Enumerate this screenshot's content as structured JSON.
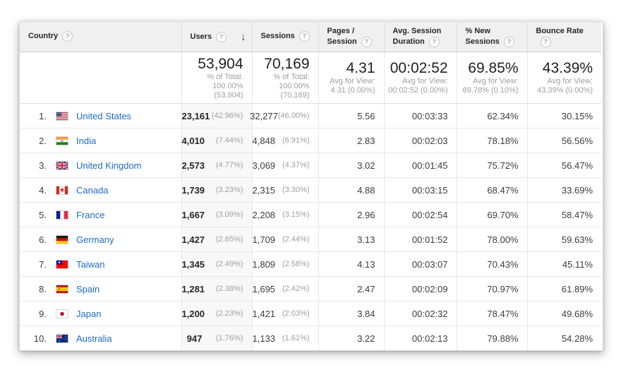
{
  "icons": {
    "sort_descending": "↓",
    "help_glyph": "?"
  },
  "colors": {
    "link_blue": "#1e6bc6",
    "header_bg": "#f0f0f0",
    "sorted_column_bg": "#f8f8f8",
    "muted_text": "#9e9e9e"
  },
  "table": {
    "columns": [
      {
        "label": "Country"
      },
      {
        "label": "Users",
        "sorted": "descending"
      },
      {
        "label": "Sessions"
      },
      {
        "label": "Pages / Session"
      },
      {
        "label": "Avg. Session Duration"
      },
      {
        "label": "% New Sessions"
      },
      {
        "label": "Bounce Rate"
      }
    ],
    "summary": {
      "users": {
        "value": "53,904",
        "caption": "% of Total:",
        "detail": "100.00% (53,904)"
      },
      "sessions": {
        "value": "70,169",
        "caption": "% of Total:",
        "detail": "100.00% (70,169)"
      },
      "pages_per_session": {
        "value": "4.31",
        "caption": "Avg for View:",
        "detail": "4.31 (0.00%)"
      },
      "avg_session_duration": {
        "value": "00:02:52",
        "caption": "Avg for View:",
        "detail": "00:02:52 (0.00%)"
      },
      "percent_new_sessions": {
        "value": "69.85%",
        "caption": "Avg for View:",
        "detail": "69.78% (0.10%)"
      },
      "bounce_rate": {
        "value": "43.39%",
        "caption": "Avg for View:",
        "detail": "43.39% (0.00%)"
      }
    },
    "rows": [
      {
        "rank": "1.",
        "flag": "us",
        "country": "United States",
        "users": "23,161",
        "users_pct": "(42.96%)",
        "sessions": "32,277",
        "sessions_pct": "(46.00%)",
        "pages_per_session": "5.56",
        "avg_session_duration": "00:03:33",
        "percent_new_sessions": "62.34%",
        "bounce_rate": "30.15%"
      },
      {
        "rank": "2.",
        "flag": "in",
        "country": "India",
        "users": "4,010",
        "users_pct": "(7.44%)",
        "sessions": "4,848",
        "sessions_pct": "(6.91%)",
        "pages_per_session": "2.83",
        "avg_session_duration": "00:02:03",
        "percent_new_sessions": "78.18%",
        "bounce_rate": "56.56%"
      },
      {
        "rank": "3.",
        "flag": "gb",
        "country": "United Kingdom",
        "users": "2,573",
        "users_pct": "(4.77%)",
        "sessions": "3,069",
        "sessions_pct": "(4.37%)",
        "pages_per_session": "3.02",
        "avg_session_duration": "00:01:45",
        "percent_new_sessions": "75.72%",
        "bounce_rate": "56.47%"
      },
      {
        "rank": "4.",
        "flag": "ca",
        "country": "Canada",
        "users": "1,739",
        "users_pct": "(3.23%)",
        "sessions": "2,315",
        "sessions_pct": "(3.30%)",
        "pages_per_session": "4.88",
        "avg_session_duration": "00:03:15",
        "percent_new_sessions": "68.47%",
        "bounce_rate": "33.69%"
      },
      {
        "rank": "5.",
        "flag": "fr",
        "country": "France",
        "users": "1,667",
        "users_pct": "(3.09%)",
        "sessions": "2,208",
        "sessions_pct": "(3.15%)",
        "pages_per_session": "2.96",
        "avg_session_duration": "00:02:54",
        "percent_new_sessions": "69.70%",
        "bounce_rate": "58.47%"
      },
      {
        "rank": "6.",
        "flag": "de",
        "country": "Germany",
        "users": "1,427",
        "users_pct": "(2.65%)",
        "sessions": "1,709",
        "sessions_pct": "(2.44%)",
        "pages_per_session": "3.13",
        "avg_session_duration": "00:01:52",
        "percent_new_sessions": "78.00%",
        "bounce_rate": "59.63%"
      },
      {
        "rank": "7.",
        "flag": "tw",
        "country": "Taiwan",
        "users": "1,345",
        "users_pct": "(2.49%)",
        "sessions": "1,809",
        "sessions_pct": "(2.58%)",
        "pages_per_session": "4.13",
        "avg_session_duration": "00:03:07",
        "percent_new_sessions": "70.43%",
        "bounce_rate": "45.11%"
      },
      {
        "rank": "8.",
        "flag": "es",
        "country": "Spain",
        "users": "1,281",
        "users_pct": "(2.38%)",
        "sessions": "1,695",
        "sessions_pct": "(2.42%)",
        "pages_per_session": "2.47",
        "avg_session_duration": "00:02:09",
        "percent_new_sessions": "70.97%",
        "bounce_rate": "61.89%"
      },
      {
        "rank": "9.",
        "flag": "jp",
        "country": "Japan",
        "users": "1,200",
        "users_pct": "(2.23%)",
        "sessions": "1,421",
        "sessions_pct": "(2.03%)",
        "pages_per_session": "3.84",
        "avg_session_duration": "00:02:32",
        "percent_new_sessions": "78.47%",
        "bounce_rate": "49.68%"
      },
      {
        "rank": "10.",
        "flag": "au",
        "country": "Australia",
        "users": "947",
        "users_pct": "(1.76%)",
        "sessions": "1,133",
        "sessions_pct": "(1.61%)",
        "pages_per_session": "3.22",
        "avg_session_duration": "00:02:13",
        "percent_new_sessions": "79.88%",
        "bounce_rate": "54.28%"
      }
    ]
  }
}
